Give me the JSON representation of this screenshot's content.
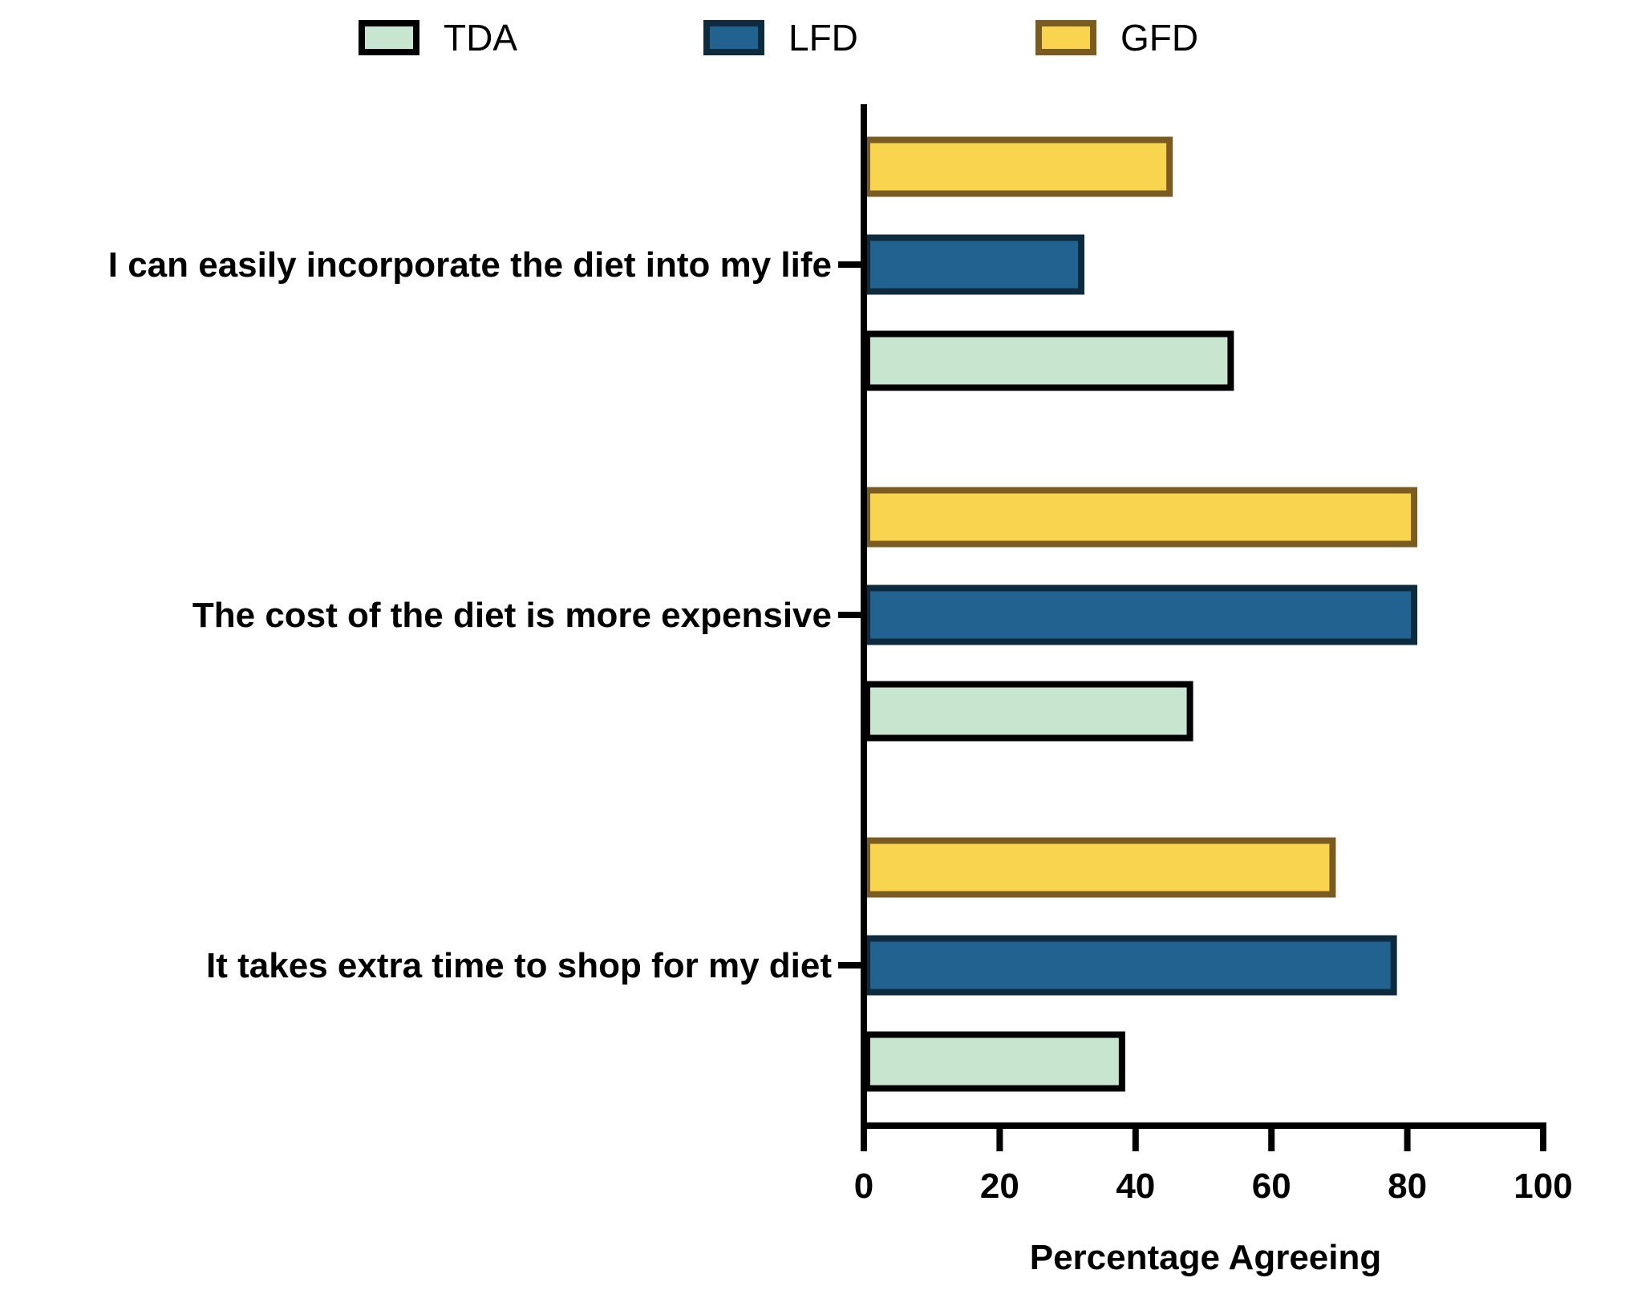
{
  "chart_data": {
    "type": "bar",
    "orientation": "horizontal",
    "categories": [
      "I can easily incorporate the diet into my life",
      "The cost of the diet is more expensive",
      "It takes extra time to shop for my diet"
    ],
    "series": [
      {
        "name": "TDA",
        "values": [
          54,
          48,
          38
        ],
        "fill": "#c8e6cf",
        "stroke": "#000000"
      },
      {
        "name": "LFD",
        "values": [
          32,
          81,
          78
        ],
        "fill": "#216291",
        "stroke": "#0e2a3d"
      },
      {
        "name": "GFD",
        "values": [
          45,
          81,
          69
        ],
        "fill": "#f9d44f",
        "stroke": "#7a5c22"
      }
    ],
    "xlabel": "Percentage Agreeing",
    "xlim": [
      0,
      100
    ],
    "xticks": [
      "0",
      "20",
      "40",
      "60",
      "80",
      "100"
    ],
    "legend": {
      "placement": "top-center",
      "entries": [
        "TDA",
        "LFD",
        "GFD"
      ]
    },
    "grid": false
  }
}
